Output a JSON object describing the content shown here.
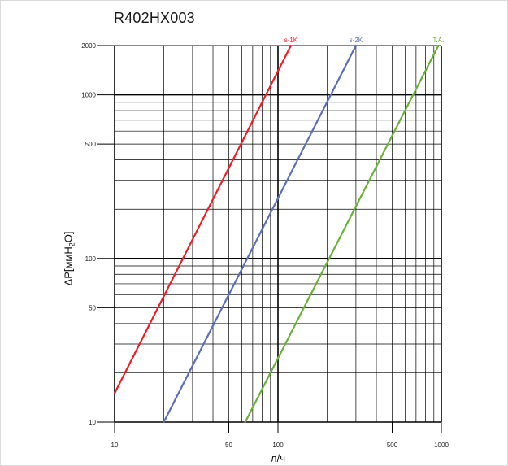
{
  "chart_data": {
    "type": "line",
    "title": "R402HX003",
    "xlabel": "л/ч",
    "ylabel": "ΔP[ммH",
    "ylabel_sub": "2",
    "ylabel_tail": "O]",
    "xscale": "log",
    "yscale": "log",
    "xlim": [
      10,
      1000
    ],
    "ylim": [
      10,
      2000
    ],
    "grid": true,
    "x_tick_labels": [
      "10",
      "50",
      "100",
      "500",
      "1000"
    ],
    "x_tick_values": [
      10,
      50,
      100,
      500,
      1000
    ],
    "y_tick_labels": [
      "10",
      "50",
      "100",
      "500",
      "1000",
      "2000"
    ],
    "y_tick_values": [
      10,
      50,
      100,
      500,
      1000,
      2000
    ],
    "series": [
      {
        "name": "s-1K",
        "color": "#e8202a",
        "x": [
          10,
          120
        ],
        "y": [
          15,
          2000
        ]
      },
      {
        "name": "s-2K",
        "color": "#5b6fb2",
        "x": [
          20,
          300
        ],
        "y": [
          10,
          2000
        ]
      },
      {
        "name": "T.A.",
        "color": "#6ab03c",
        "x": [
          63,
          960
        ],
        "y": [
          10,
          2000
        ]
      }
    ]
  }
}
